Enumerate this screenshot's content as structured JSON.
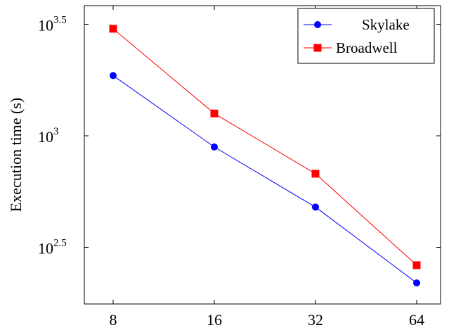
{
  "chart_data": {
    "type": "line",
    "title": "",
    "xlabel": "",
    "ylabel": "Execution time (s)",
    "y_scale": "log10",
    "x_scale": "log2",
    "categories": [
      "8",
      "16",
      "32",
      "64"
    ],
    "x": [
      8,
      16,
      32,
      64
    ],
    "ylim_exponent": [
      2.25,
      3.63
    ],
    "y_ticks": [
      {
        "base": "10",
        "exp": "2.5",
        "value_exponent": 2.5
      },
      {
        "base": "10",
        "exp": "3",
        "value_exponent": 3.0
      },
      {
        "base": "10",
        "exp": "3.5",
        "value_exponent": 3.5
      }
    ],
    "series": [
      {
        "name": "Skylake",
        "color": "#0000ff",
        "marker": "circle",
        "values": [
          1862,
          891,
          479,
          219
        ]
      },
      {
        "name": "Broadwell",
        "color": "#ff0000",
        "marker": "square",
        "values": [
          3020,
          1259,
          676,
          263
        ]
      }
    ],
    "legend_position": "top-right",
    "grid": false
  }
}
